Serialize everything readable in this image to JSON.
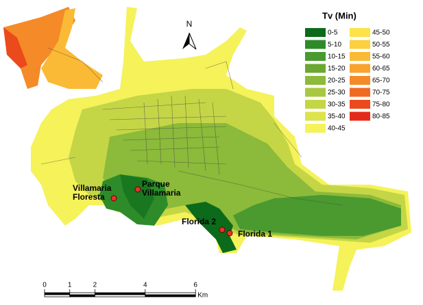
{
  "legend": {
    "title": "Tv (Min)",
    "items": [
      {
        "label": "0-5",
        "color": "#0b6b1a"
      },
      {
        "label": "5-10",
        "color": "#2e8b2a"
      },
      {
        "label": "10-15",
        "color": "#4a9a2f"
      },
      {
        "label": "15-20",
        "color": "#6aa832"
      },
      {
        "label": "20-25",
        "color": "#8cba3a"
      },
      {
        "label": "25-30",
        "color": "#a8c840"
      },
      {
        "label": "30-35",
        "color": "#c4d646"
      },
      {
        "label": "35-40",
        "color": "#dde34c"
      },
      {
        "label": "40-45",
        "color": "#f5f25a"
      },
      {
        "label": "45-50",
        "color": "#fde24a"
      },
      {
        "label": "50-55",
        "color": "#fcd03e"
      },
      {
        "label": "55-60",
        "color": "#fbba35"
      },
      {
        "label": "60-65",
        "color": "#f9a32e"
      },
      {
        "label": "65-70",
        "color": "#f58a28"
      },
      {
        "label": "70-75",
        "color": "#f06a22"
      },
      {
        "label": "75-80",
        "color": "#ea4a1c"
      },
      {
        "label": "80-85",
        "color": "#e42a18"
      }
    ]
  },
  "north": "N",
  "places": [
    {
      "lines": [
        "Villamaria",
        "Floresta"
      ]
    },
    {
      "lines": [
        "Parque",
        "Villamaria"
      ]
    },
    {
      "lines": [
        "Florida 2"
      ]
    },
    {
      "lines": [
        "Florida 1"
      ]
    }
  ],
  "scale": {
    "ticks": [
      0,
      1,
      2,
      4,
      6
    ],
    "unit": "Km"
  }
}
